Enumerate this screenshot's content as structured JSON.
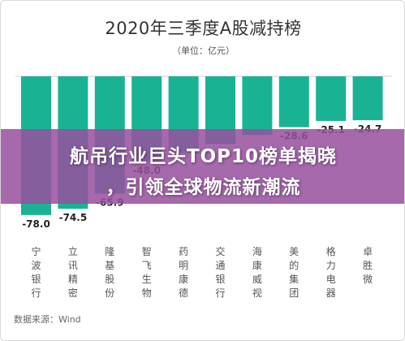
{
  "chart_data": {
    "type": "bar",
    "title": "2020年三季度A股减持榜",
    "subtitle": "（单位：亿元）",
    "source": "数据来源：Wind",
    "categories": [
      "宁波银行",
      "立讯精密",
      "隆基股份",
      "智飞生物",
      "药明康德",
      "交通银行",
      "海康威视",
      "美的集团",
      "格力电器",
      "卓胜微"
    ],
    "values": [
      -78.0,
      -74.5,
      -65.9,
      -48.0,
      -43.0,
      -38.0,
      -33.0,
      -28.6,
      -25.1,
      -24.7
    ],
    "value_labels": [
      "-78.0",
      "-74.5",
      "-65.9",
      "-48.0",
      "",
      "",
      "",
      "-28.6",
      "-25.1",
      "-24.7"
    ],
    "ylim": [
      -90,
      0
    ],
    "grid": false,
    "bar_color": "#19b394"
  },
  "overlay": {
    "headline_line1": "航吊行业巨头TOP10榜单揭晓",
    "headline_line2": "，引领全球物流新潮流"
  }
}
